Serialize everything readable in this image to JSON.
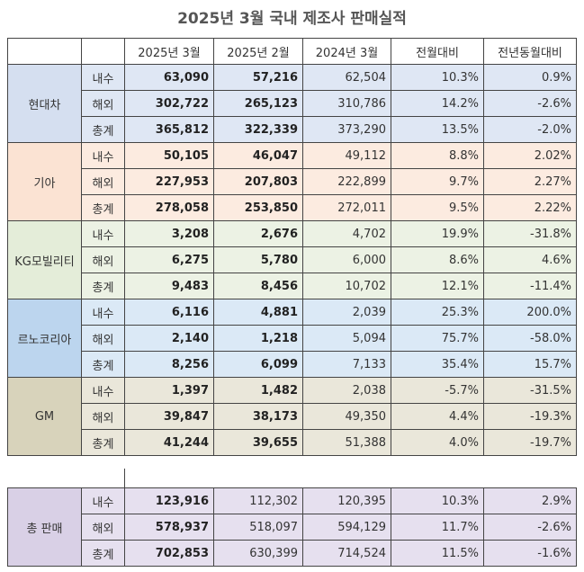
{
  "title": "2025년 3월 국내 제조사 판매실적",
  "table": {
    "header": [
      "2025년 3월",
      "2025년 2월",
      "2024년 3월",
      "전월대비",
      "전년동월대비"
    ],
    "groups": [
      {
        "name": "현대차",
        "rows": [
          {
            "label": "내수",
            "cells": [
              "63,090",
              "57,216",
              "62,504",
              "10.3%",
              "0.9%"
            ]
          },
          {
            "label": "해외",
            "cells": [
              "302,722",
              "265,123",
              "310,786",
              "14.2%",
              "-2.6%"
            ]
          },
          {
            "label": "총계",
            "cells": [
              "365,812",
              "322,339",
              "373,290",
              "13.5%",
              "-2.0%"
            ]
          }
        ]
      },
      {
        "name": "기아",
        "rows": [
          {
            "label": "내수",
            "cells": [
              "50,105",
              "46,047",
              "49,112",
              "8.8%",
              "2.02%"
            ]
          },
          {
            "label": "해외",
            "cells": [
              "227,953",
              "207,803",
              "222,899",
              "9.7%",
              "2.27%"
            ]
          },
          {
            "label": "총계",
            "cells": [
              "278,058",
              "253,850",
              "272,011",
              "9.5%",
              "2.22%"
            ]
          }
        ]
      },
      {
        "name": "KG모빌리티",
        "rows": [
          {
            "label": "내수",
            "cells": [
              "3,208",
              "2,676",
              "4,702",
              "19.9%",
              "-31.8%"
            ]
          },
          {
            "label": "해외",
            "cells": [
              "6,275",
              "5,780",
              "6,000",
              "8.6%",
              "4.6%"
            ]
          },
          {
            "label": "총계",
            "cells": [
              "9,483",
              "8,456",
              "10,702",
              "12.1%",
              "-11.4%"
            ]
          }
        ]
      },
      {
        "name": "르노코리아",
        "rows": [
          {
            "label": "내수",
            "cells": [
              "6,116",
              "4,881",
              "2,039",
              "25.3%",
              "200.0%"
            ]
          },
          {
            "label": "해외",
            "cells": [
              "2,140",
              "1,218",
              "5,094",
              "75.7%",
              "-58.0%"
            ]
          },
          {
            "label": "총계",
            "cells": [
              "8,256",
              "6,099",
              "7,133",
              "35.4%",
              "15.7%"
            ]
          }
        ]
      },
      {
        "name": "GM",
        "rows": [
          {
            "label": "내수",
            "cells": [
              "1,397",
              "1,482",
              "2,038",
              "-5.7%",
              "-31.5%"
            ]
          },
          {
            "label": "해외",
            "cells": [
              "39,847",
              "38,173",
              "49,350",
              "4.4%",
              "-19.3%"
            ]
          },
          {
            "label": "총계",
            "cells": [
              "41,244",
              "39,655",
              "51,388",
              "4.0%",
              "-19.7%"
            ]
          }
        ]
      }
    ]
  },
  "total": {
    "name": "총 판매",
    "rows": [
      {
        "label": "내수",
        "cells": [
          "123,916",
          "112,302",
          "120,395",
          "10.3%",
          "2.9%"
        ]
      },
      {
        "label": "해외",
        "cells": [
          "578,937",
          "518,097",
          "594,129",
          "11.7%",
          "-2.6%"
        ]
      },
      {
        "label": "총계",
        "cells": [
          "702,853",
          "630,399",
          "714,524",
          "11.5%",
          "-1.6%"
        ]
      }
    ]
  }
}
